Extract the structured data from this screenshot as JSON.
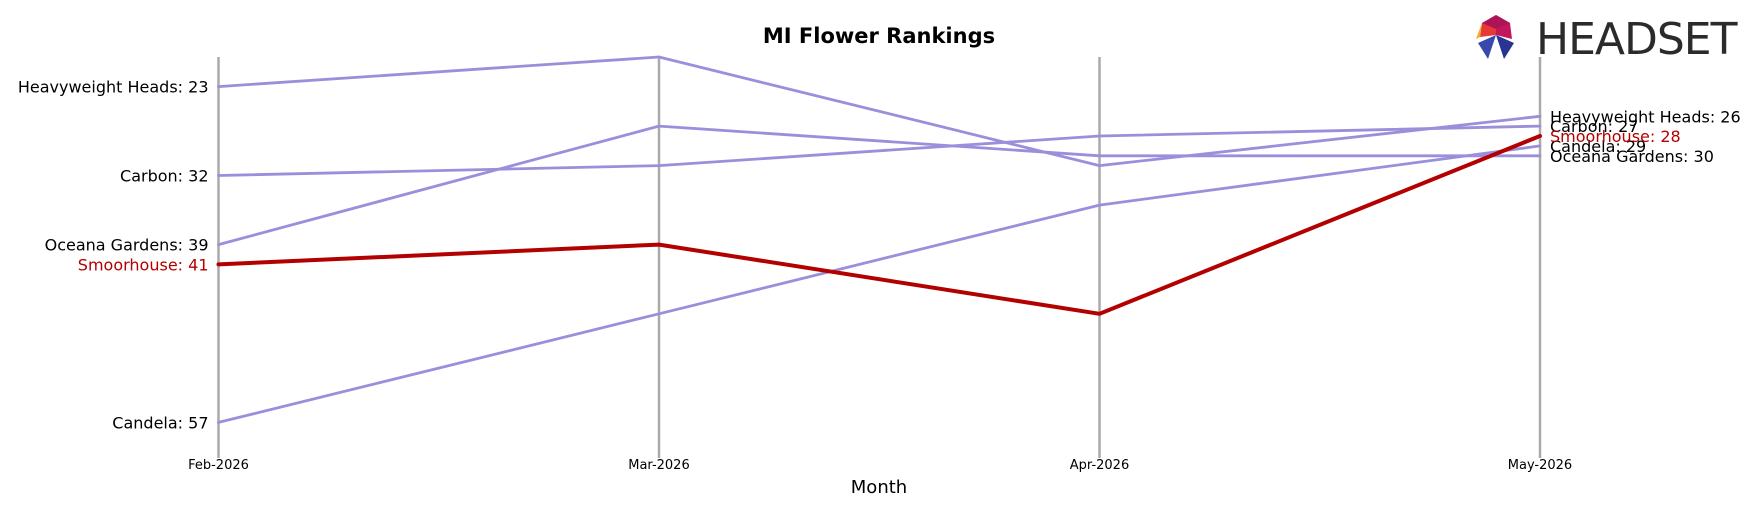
{
  "logo": {
    "text": "HEADSET"
  },
  "chart_data": {
    "type": "line",
    "title": "MI Flower Rankings",
    "xlabel": "Month",
    "ylabel": "",
    "x": [
      "Feb-2026",
      "Mar-2026",
      "Apr-2026",
      "May-2026"
    ],
    "y_axis": "rank (inverted, 1 at top)",
    "ylim": [
      60,
      20
    ],
    "grid": "vertical lines at each month",
    "highlight_color": "#b30000",
    "series_color": "#9b8fdc",
    "series": [
      {
        "name": "Heavyweight Heads",
        "values": [
          23,
          20,
          31,
          26
        ],
        "highlight": false,
        "start_label": "Heavyweight Heads: 23",
        "end_label": "Heavyweight Heads: 26"
      },
      {
        "name": "Carbon",
        "values": [
          32,
          31,
          28,
          27
        ],
        "highlight": false,
        "start_label": "Carbon: 32",
        "end_label": "Carbon: 27"
      },
      {
        "name": "Oceana Gardens",
        "values": [
          39,
          27,
          30,
          30
        ],
        "highlight": false,
        "start_label": "Oceana Gardens: 39",
        "end_label": "Oceana Gardens: 30"
      },
      {
        "name": "Candela",
        "values": [
          57,
          46,
          35,
          29
        ],
        "highlight": false,
        "start_label": "Candela: 57",
        "end_label": "Candela: 29"
      },
      {
        "name": "Smoorhouse",
        "values": [
          41,
          39,
          46,
          28
        ],
        "highlight": true,
        "start_label": "Smoorhouse: 41",
        "end_label": "Smoorhouse: 28"
      }
    ]
  }
}
